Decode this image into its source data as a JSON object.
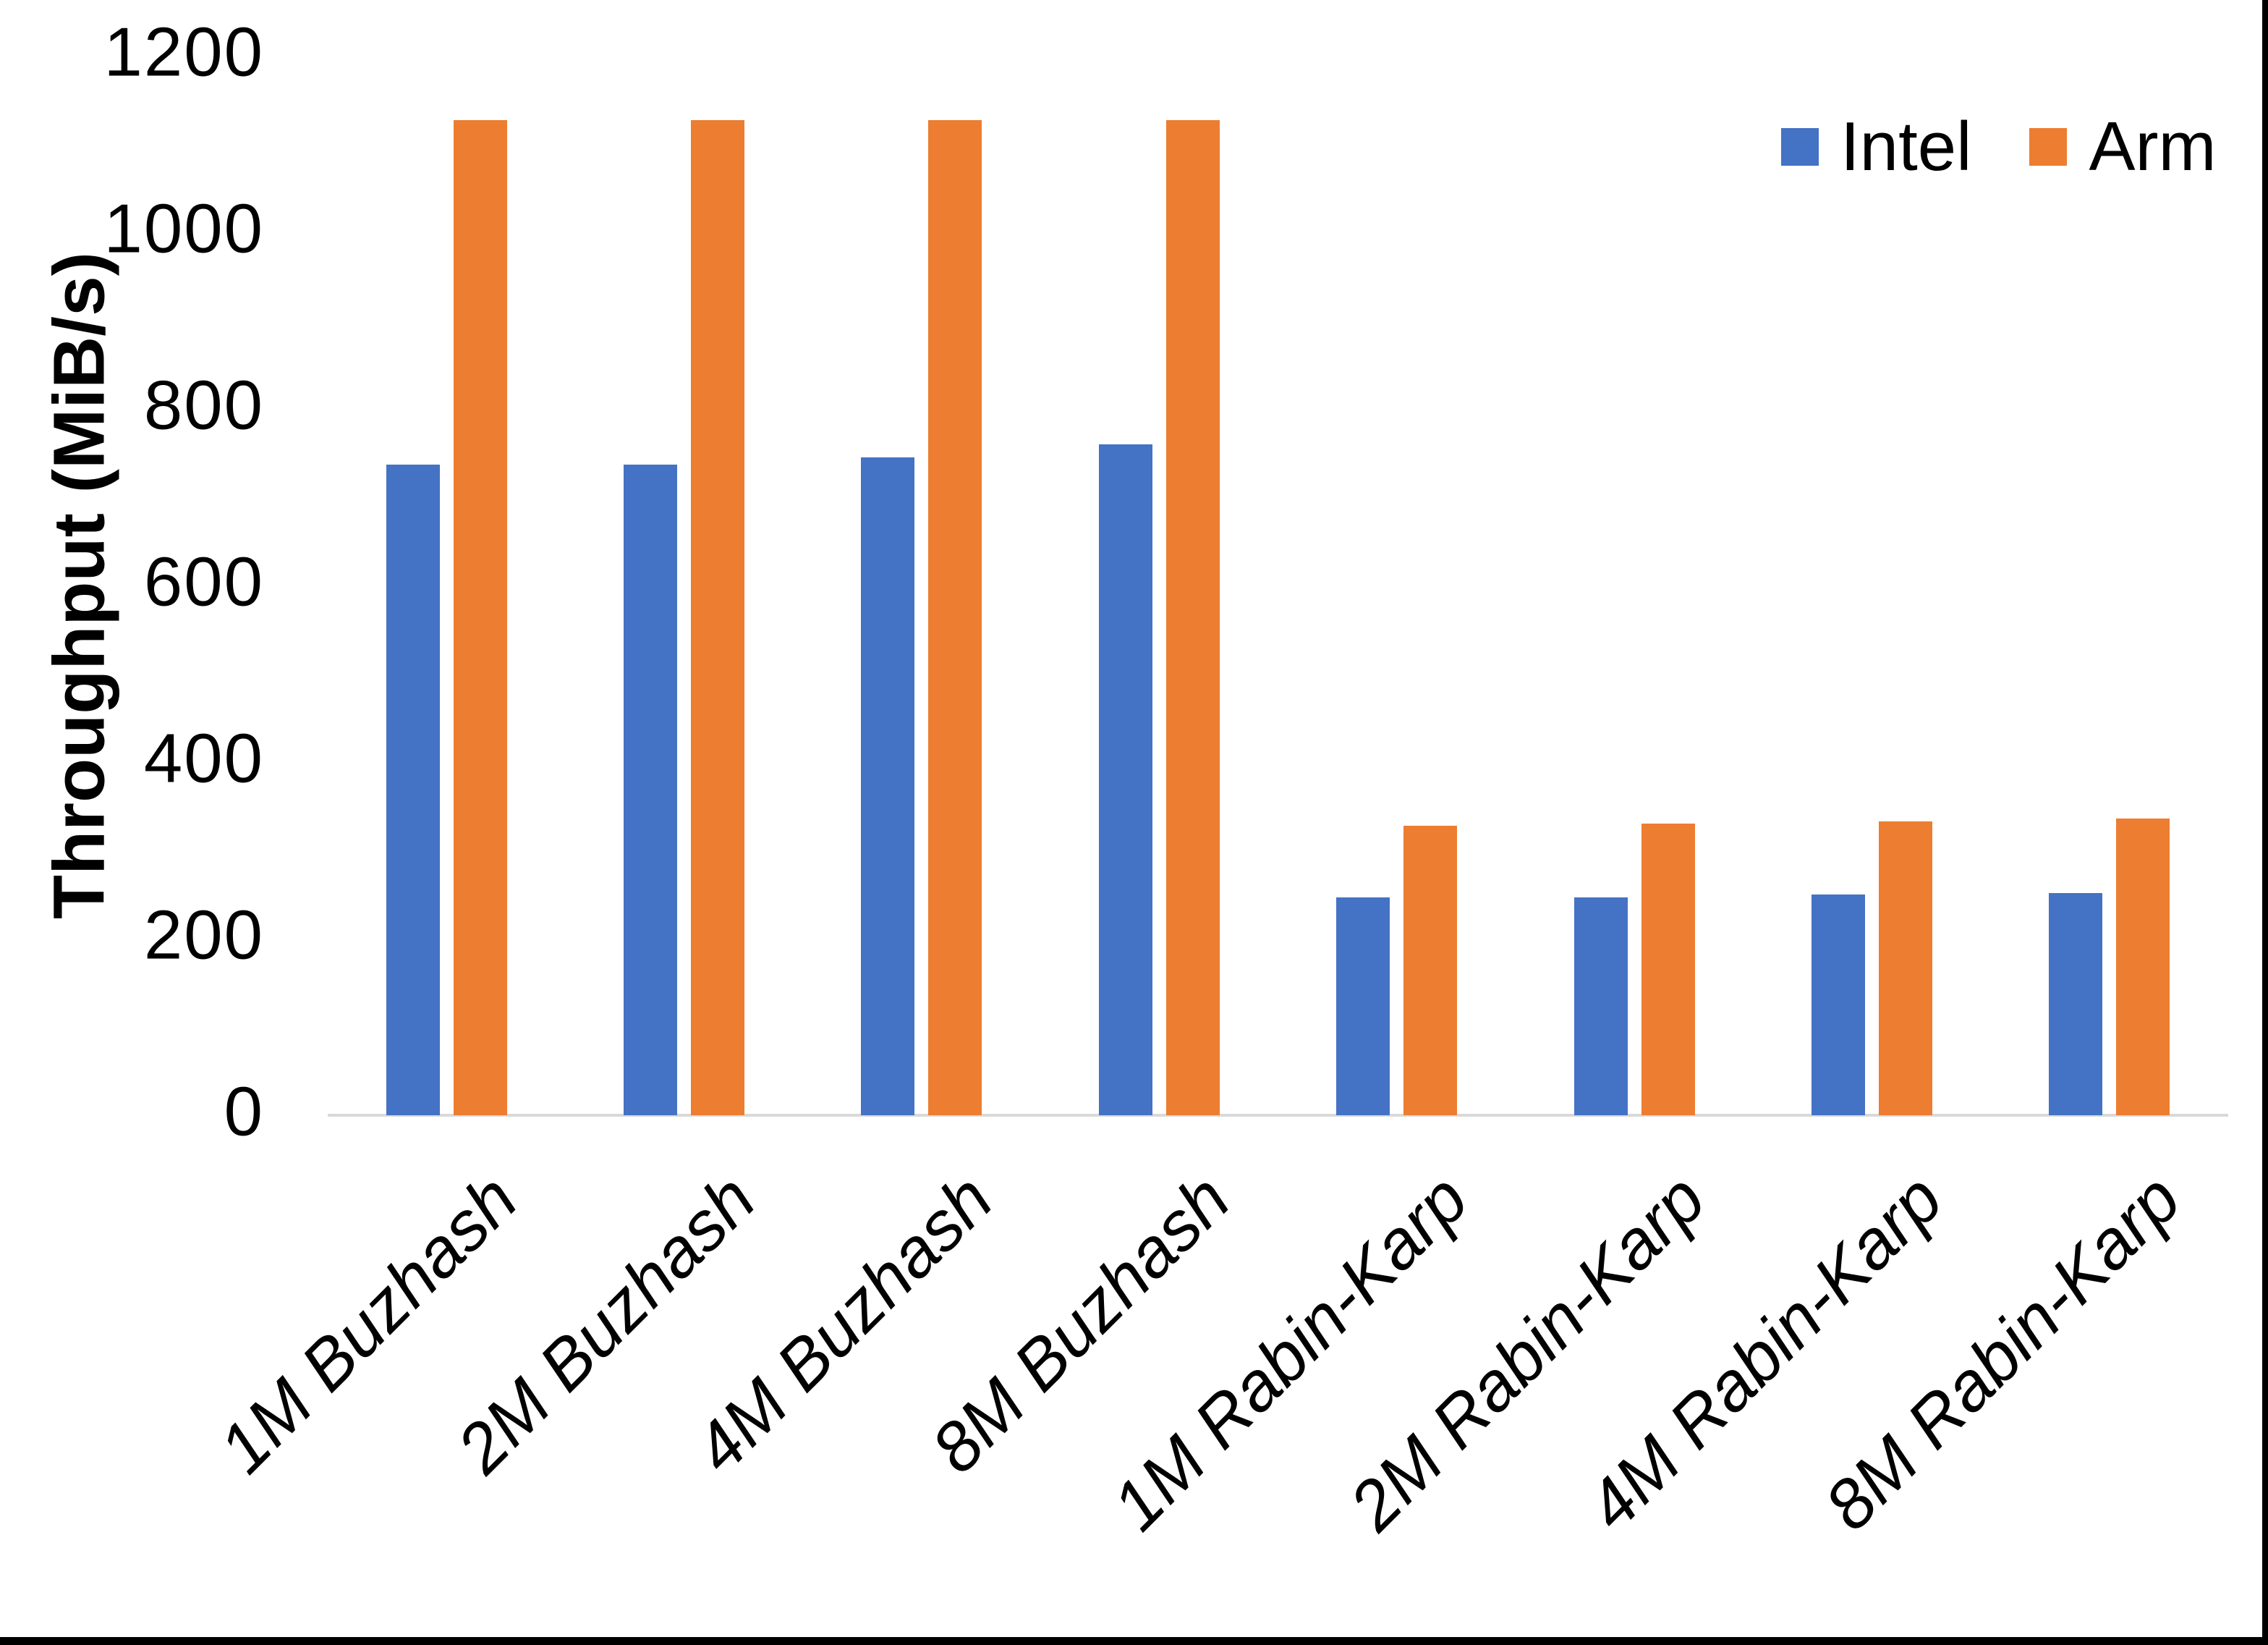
{
  "figure": {
    "background": "#ffffff",
    "edge_border_color": "#000000"
  },
  "chart_data": {
    "type": "bar",
    "title": "",
    "categories": [
      "1M Buzhash",
      "2M Buzhash",
      "4M Buzhash",
      "8M Buzhash",
      "1M Rabin-Karp",
      "2M Rabin-Karp",
      "4M Rabin-Karp",
      "8M Rabin-Karp"
    ],
    "series": [
      {
        "name": "Intel",
        "color": "#4472C4",
        "values": [
          737,
          737,
          745,
          760,
          247,
          247,
          250,
          252
        ]
      },
      {
        "name": "Arm",
        "color": "#ED7D31",
        "values": [
          1127,
          1127,
          1127,
          1127,
          328,
          330,
          333,
          336
        ]
      }
    ],
    "xlabel": "",
    "ylabel": "Throughput (MiB/s)",
    "ylim": [
      0,
      1200
    ],
    "yticks": [
      0,
      200,
      400,
      600,
      800,
      1000,
      1200
    ],
    "grid": false,
    "legend_position": "top-right",
    "axis_line_color": "#D9D9D9",
    "text_color": "#000000",
    "x_label_style": "italic, rotated 45deg",
    "bar_units": "MiB/s"
  }
}
